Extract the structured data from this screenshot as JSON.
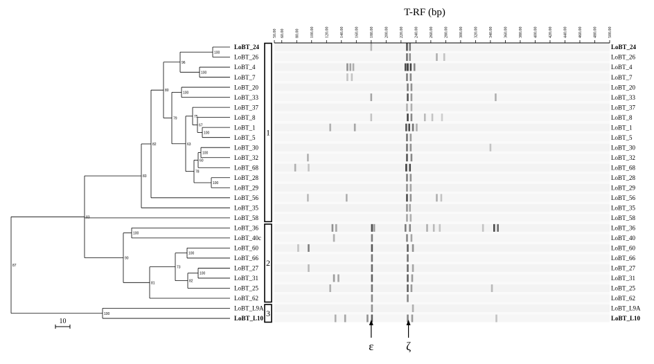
{
  "axis_title": "T-RF (bp)",
  "axis_ticks": [
    "50.00",
    "60.00",
    "80.00",
    "100.00",
    "120.00",
    "140.00",
    "160.00",
    "180.00",
    "200.00",
    "220.00",
    "240.00",
    "260.00",
    "280.00",
    "300.00",
    "320.00",
    "340.00",
    "360.00",
    "380.00",
    "400.00",
    "420.00",
    "440.00",
    "460.00",
    "480.00",
    "500.00"
  ],
  "axis_tick_values": [
    50,
    60,
    80,
    100,
    120,
    140,
    160,
    180,
    200,
    220,
    240,
    260,
    280,
    300,
    320,
    340,
    360,
    380,
    400,
    420,
    440,
    460,
    480,
    500
  ],
  "axis_range": [
    50,
    500
  ],
  "tree_labels": [
    "LoBT_24",
    "LoBT_26",
    "LoBT_4",
    "LoBT_7",
    "LoBT_20",
    "LoBT_33",
    "LoBT_37",
    "LoBT_8",
    "LoBT_1",
    "LoBT_5",
    "LoBT_30",
    "LoBT_32",
    "LoBT_68",
    "LoBT_28",
    "LoBT_29",
    "LoBT_56",
    "LoBT_35",
    "LoBT_58",
    "LoBT_36",
    "LoBT_40c",
    "LoBT_60",
    "LoBT_66",
    "LoBT_27",
    "LoBT_31",
    "LoBT_25",
    "LoBT_62",
    "LoBT_L9A",
    "LoBT_L10"
  ],
  "lane_labels": [
    "LoBT_24",
    "LoBT_26",
    "LoBT_4",
    "LoBT_7",
    "LoBT_20",
    "LoBT_33",
    "LoBT_37",
    "LoBT_8",
    "LoBT_1",
    "LoBT_5",
    "LoBT_30",
    "LoBT_32",
    "LoBT_68",
    "LoBT_28",
    "LoBT_29",
    "LoBT_56",
    "LoBT_35",
    "LoBT_58",
    "LoBT_36",
    "LoBT_40",
    "LoBT_60",
    "LoBT_66",
    "LoBT_27",
    "LoBT_31",
    "LoBT_25",
    "LoBT_62",
    "LoBT_L9A",
    "LoBT_L10"
  ],
  "bold_rows": [
    0,
    27
  ],
  "groups": [
    {
      "label": "1",
      "first_row": 0,
      "last_row": 17
    },
    {
      "label": "2",
      "first_row": 18,
      "last_row": 25
    },
    {
      "label": "3",
      "first_row": 26,
      "last_row": 27
    }
  ],
  "bootstrap_values": {
    "n_24_26": "100",
    "n_4_7": "100",
    "n_24_7": "96",
    "n_20_33": "100",
    "n_1_5": "100",
    "n_8_5": "67",
    "n_37_5": "75",
    "n_30_32": "100",
    "n_30_68": "60",
    "n_28_29": "100",
    "n_30_29": "78",
    "n_37_29": "63",
    "n_20_29": "79",
    "n_24_29": "80",
    "n_24_56": "82",
    "n_24_35": "83",
    "n_36_40": "100",
    "n_60_66": "100",
    "n_27_31": "100",
    "n_27_25": "82",
    "n_60_25": "73",
    "n_60_62": "81",
    "n_36_62": "90",
    "n_24_62": "83",
    "n_L9A_L10": "100",
    "root": "87"
  },
  "scale_bar_label": "10",
  "markers": [
    {
      "label": "ε",
      "bp": 180
    },
    {
      "label": "ζ",
      "bp": 230
    }
  ],
  "band_data": [
    [
      [
        180,
        0.25
      ],
      [
        228,
        0.75
      ],
      [
        232,
        0.55
      ]
    ],
    [
      [
        228,
        0.6
      ],
      [
        232,
        0.45
      ],
      [
        268,
        0.3
      ],
      [
        278,
        0.2
      ]
    ],
    [
      [
        148,
        0.45
      ],
      [
        152,
        0.35
      ],
      [
        156,
        0.3
      ],
      [
        226,
        0.8
      ],
      [
        229,
        0.9
      ],
      [
        233,
        0.85
      ],
      [
        238,
        0.5
      ]
    ],
    [
      [
        148,
        0.2
      ],
      [
        154,
        0.2
      ],
      [
        228,
        0.55
      ],
      [
        233,
        0.5
      ]
    ],
    [
      [
        229,
        0.55
      ],
      [
        234,
        0.45
      ]
    ],
    [
      [
        180,
        0.35
      ],
      [
        229,
        0.75
      ],
      [
        234,
        0.4
      ],
      [
        347,
        0.3
      ]
    ],
    [
      [
        228,
        0.3
      ],
      [
        234,
        0.3
      ]
    ],
    [
      [
        180,
        0.2
      ],
      [
        229,
        0.85
      ],
      [
        234,
        0.5
      ],
      [
        252,
        0.25
      ],
      [
        262,
        0.2
      ],
      [
        275,
        0.15
      ]
    ],
    [
      [
        125,
        0.3
      ],
      [
        158,
        0.35
      ],
      [
        227,
        0.75
      ],
      [
        231,
        0.8
      ],
      [
        236,
        0.6
      ],
      [
        241,
        0.3
      ]
    ],
    [
      [
        228,
        0.6
      ],
      [
        233,
        0.4
      ]
    ],
    [
      [
        228,
        0.6
      ],
      [
        233,
        0.45
      ],
      [
        340,
        0.2
      ]
    ],
    [
      [
        95,
        0.3
      ],
      [
        228,
        0.75
      ],
      [
        234,
        0.5
      ]
    ],
    [
      [
        78,
        0.3
      ],
      [
        96,
        0.2
      ],
      [
        227,
        0.85
      ],
      [
        232,
        0.8
      ]
    ],
    [
      [
        228,
        0.55
      ],
      [
        233,
        0.45
      ]
    ],
    [
      [
        228,
        0.45
      ],
      [
        233,
        0.35
      ]
    ],
    [
      [
        95,
        0.25
      ],
      [
        147,
        0.3
      ],
      [
        228,
        0.8
      ],
      [
        233,
        0.45
      ],
      [
        268,
        0.3
      ],
      [
        274,
        0.2
      ]
    ],
    [
      [
        228,
        0.45
      ],
      [
        232,
        0.35
      ]
    ],
    [
      [
        228,
        0.35
      ],
      [
        233,
        0.3
      ]
    ],
    [
      [
        128,
        0.45
      ],
      [
        133,
        0.35
      ],
      [
        181,
        0.8
      ],
      [
        184,
        0.4
      ],
      [
        226,
        0.55
      ],
      [
        232,
        0.5
      ],
      [
        255,
        0.3
      ],
      [
        264,
        0.25
      ],
      [
        272,
        0.2
      ],
      [
        330,
        0.2
      ],
      [
        345,
        0.8
      ],
      [
        350,
        0.65
      ]
    ],
    [
      [
        130,
        0.3
      ],
      [
        181,
        0.55
      ],
      [
        228,
        0.5
      ],
      [
        234,
        0.35
      ]
    ],
    [
      [
        82,
        0.2
      ],
      [
        96,
        0.55
      ],
      [
        181,
        0.75
      ],
      [
        229,
        0.7
      ],
      [
        236,
        0.45
      ]
    ],
    [
      [
        181,
        0.6
      ],
      [
        229,
        0.6
      ]
    ],
    [
      [
        96,
        0.25
      ],
      [
        181,
        0.65
      ],
      [
        229,
        0.65
      ],
      [
        236,
        0.35
      ]
    ],
    [
      [
        130,
        0.4
      ],
      [
        136,
        0.35
      ],
      [
        181,
        0.7
      ],
      [
        229,
        0.7
      ],
      [
        235,
        0.4
      ]
    ],
    [
      [
        125,
        0.3
      ],
      [
        181,
        0.6
      ],
      [
        229,
        0.7
      ],
      [
        234,
        0.4
      ],
      [
        342,
        0.25
      ]
    ],
    [
      [
        181,
        0.5
      ],
      [
        229,
        0.5
      ]
    ],
    [
      [
        181,
        0.45
      ],
      [
        236,
        0.3
      ]
    ],
    [
      [
        132,
        0.3
      ],
      [
        145,
        0.35
      ],
      [
        175,
        0.45
      ],
      [
        181,
        0.7
      ],
      [
        229,
        0.5
      ],
      [
        235,
        0.4
      ],
      [
        348,
        0.2
      ]
    ]
  ]
}
